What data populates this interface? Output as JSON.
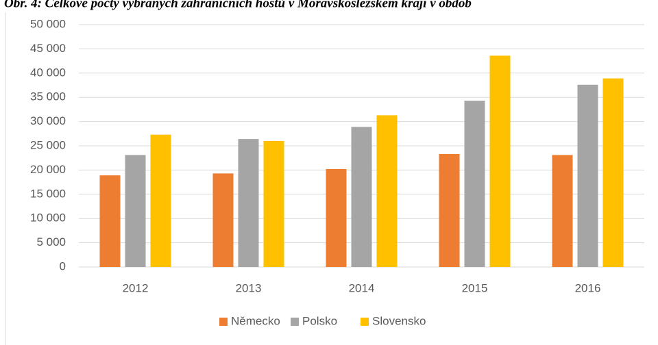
{
  "chart_data": {
    "type": "bar",
    "title": "Obr. 4: Celkové počty vybraných zahraničních hostů v Moravskoslezském kraji v obdob",
    "categories": [
      "2012",
      "2013",
      "2014",
      "2015",
      "2016"
    ],
    "series": [
      {
        "name": "Německo",
        "color": "#ed7d31",
        "values": [
          18900,
          19300,
          20200,
          23300,
          23100
        ]
      },
      {
        "name": "Polsko",
        "color": "#a5a5a5",
        "values": [
          23100,
          26400,
          28900,
          34300,
          37600
        ]
      },
      {
        "name": "Slovensko",
        "color": "#ffc000",
        "values": [
          27300,
          26000,
          31300,
          43600,
          38900
        ]
      }
    ],
    "ylim": [
      0,
      50000
    ],
    "yticks": [
      0,
      {
        "value": 5000,
        "label": "5 000"
      },
      {
        "value": 10000,
        "label": "10 000"
      },
      {
        "value": 15000,
        "label": "15 000"
      },
      {
        "value": 20000,
        "label": "20 000"
      },
      {
        "value": 25000,
        "label": "25 000"
      },
      {
        "value": 30000,
        "label": "30 000"
      },
      {
        "value": 35000,
        "label": "35 000"
      },
      {
        "value": 40000,
        "label": "40 000"
      },
      {
        "value": 45000,
        "label": "45 000"
      },
      {
        "value": 50000,
        "label": "50 000"
      }
    ],
    "grid": true,
    "legend": "bottom"
  }
}
